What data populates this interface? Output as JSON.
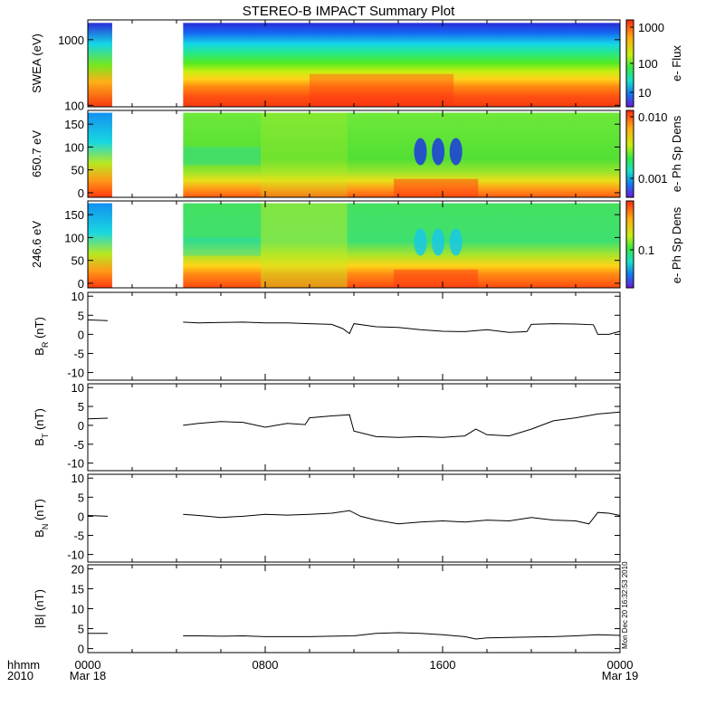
{
  "title": "STEREO-B IMPACT Summary Plot",
  "time_axis": {
    "row_label_1": "hhmm",
    "row_label_2": "2010",
    "ticks": [
      {
        "t": 0,
        "label": "0000",
        "date": "Mar 18"
      },
      {
        "t": 8,
        "label": "0800",
        "date": ""
      },
      {
        "t": 16,
        "label": "1600",
        "date": ""
      },
      {
        "t": 24,
        "label": "0000",
        "date": "Mar 19"
      }
    ],
    "range_hours": [
      0,
      24
    ]
  },
  "timestamp": "Mon Dec 20 16:32:53 2010",
  "colorbars": [
    {
      "label": "e- Flux",
      "ticks": [
        "1000",
        "100",
        "10"
      ]
    },
    {
      "label": "e- Ph Sp Dens",
      "ticks": [
        "0.010",
        "0.001"
      ]
    },
    {
      "label": "e- Ph Sp Dens",
      "ticks": [
        "0.1"
      ]
    }
  ],
  "chart_data": [
    {
      "type": "heatmap",
      "ylabel": "SWEA (eV)",
      "yscale": "log",
      "ylim": [
        95,
        2000
      ],
      "yticks": [
        {
          "v": 100,
          "label": "100"
        },
        {
          "v": 1000,
          "label": "1000"
        }
      ],
      "data_gap_hours": [
        1.1,
        4.3
      ],
      "description_colors": "red at low energy, green mid, blue at high energy"
    },
    {
      "type": "heatmap",
      "ylabel": "650.7 eV",
      "ylim": [
        -10,
        180
      ],
      "yticks": [
        {
          "v": 0,
          "label": "0"
        },
        {
          "v": 50,
          "label": "50"
        },
        {
          "v": 100,
          "label": "100"
        },
        {
          "v": 150,
          "label": "150"
        }
      ],
      "data_gap_hours": [
        1.1,
        4.3
      ]
    },
    {
      "type": "heatmap",
      "ylabel": "246.6 eV",
      "ylim": [
        -10,
        180
      ],
      "yticks": [
        {
          "v": 0,
          "label": "0"
        },
        {
          "v": 50,
          "label": "50"
        },
        {
          "v": 100,
          "label": "100"
        },
        {
          "v": 150,
          "label": "150"
        }
      ],
      "data_gap_hours": [
        1.1,
        4.3
      ]
    },
    {
      "type": "line",
      "ylabel": "B_R (nT)",
      "ylim": [
        -12,
        11
      ],
      "yticks": [
        -10,
        -5,
        0,
        5,
        10
      ],
      "series": [
        {
          "x": [
            0,
            0.9
          ],
          "y": [
            3.8,
            3.6
          ]
        },
        {
          "x": [
            4.3,
            5,
            6,
            7,
            8,
            9,
            10,
            11,
            11.5,
            11.8,
            12,
            13,
            14,
            15,
            16,
            17,
            18,
            19,
            19.8,
            20,
            21,
            22,
            22.8,
            23,
            23.5,
            24
          ],
          "y": [
            3.2,
            3,
            3.1,
            3.2,
            3,
            3,
            2.8,
            2.6,
            1.5,
            0.2,
            2.8,
            2,
            1.8,
            1.2,
            0.8,
            0.7,
            1.2,
            0.5,
            0.7,
            2.6,
            2.8,
            2.7,
            2.5,
            0,
            0,
            0.8
          ]
        }
      ]
    },
    {
      "type": "line",
      "ylabel": "B_T (nT)",
      "ylim": [
        -12,
        11
      ],
      "yticks": [
        -10,
        -5,
        0,
        5,
        10
      ],
      "series": [
        {
          "x": [
            0,
            0.9
          ],
          "y": [
            1.7,
            1.9
          ]
        },
        {
          "x": [
            4.3,
            5,
            6,
            7,
            8,
            9,
            9.8,
            10,
            11,
            11.8,
            12,
            13,
            14,
            15,
            16,
            17,
            17.5,
            18,
            19,
            20,
            21,
            22,
            23,
            24
          ],
          "y": [
            0,
            0.5,
            1,
            0.8,
            -0.5,
            0.5,
            0.2,
            2,
            2.5,
            2.8,
            -1.5,
            -3,
            -3.2,
            -3,
            -3.2,
            -2.8,
            -1,
            -2.5,
            -2.8,
            -1,
            1.2,
            2,
            3,
            3.5
          ]
        }
      ]
    },
    {
      "type": "line",
      "ylabel": "B_N (nT)",
      "ylim": [
        -12,
        11
      ],
      "yticks": [
        -10,
        -5,
        0,
        5,
        10
      ],
      "series": [
        {
          "x": [
            0,
            0.9
          ],
          "y": [
            0.2,
            0
          ]
        },
        {
          "x": [
            4.3,
            5,
            6,
            7,
            8,
            9,
            10,
            11,
            11.8,
            12.3,
            13,
            14,
            15,
            16,
            17,
            18,
            19,
            20,
            21,
            22,
            22.6,
            23,
            23.5,
            24
          ],
          "y": [
            0.5,
            0.2,
            -0.3,
            0,
            0.5,
            0.3,
            0.5,
            0.8,
            1.5,
            0,
            -1,
            -2,
            -1.5,
            -1.2,
            -1.5,
            -1,
            -1.2,
            -0.3,
            -1,
            -1.2,
            -2,
            1,
            0.8,
            0.2
          ]
        }
      ]
    },
    {
      "type": "line",
      "ylabel": "|B| (nT)",
      "ylim": [
        -1,
        21
      ],
      "yticks": [
        0,
        5,
        10,
        15,
        20
      ],
      "series": [
        {
          "x": [
            0,
            0.9
          ],
          "y": [
            3.8,
            3.8
          ]
        },
        {
          "x": [
            4.3,
            5,
            6,
            7,
            8,
            9,
            10,
            11,
            12,
            13,
            14,
            15,
            16,
            17,
            17.5,
            18,
            19,
            20,
            21,
            22,
            23,
            24
          ],
          "y": [
            3.2,
            3.2,
            3.1,
            3.2,
            3,
            3,
            3,
            3.1,
            3.2,
            3.8,
            4,
            3.8,
            3.5,
            3,
            2.4,
            2.7,
            2.8,
            2.9,
            3,
            3.2,
            3.5,
            3.3
          ]
        }
      ]
    }
  ]
}
